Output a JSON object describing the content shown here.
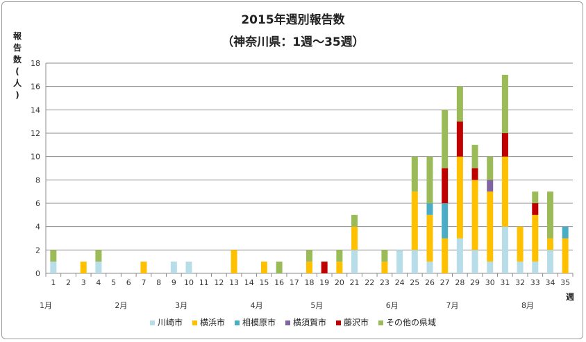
{
  "title_line1": "2015年週別報告数",
  "title_line2": "（神奈川県：1週〜35週）",
  "chart_data": {
    "type": "bar",
    "stacked": true,
    "ylabel": "報告数(人)",
    "xlabel": "週",
    "ylim": [
      0,
      18
    ],
    "yticks": [
      0,
      2,
      4,
      6,
      8,
      10,
      12,
      14,
      16,
      18
    ],
    "grid": true,
    "legend_position": "bottom",
    "categories": [
      "1",
      "2",
      "3",
      "4",
      "5",
      "6",
      "7",
      "8",
      "9",
      "10",
      "11",
      "12",
      "13",
      "14",
      "15",
      "16",
      "17",
      "18",
      "19",
      "20",
      "21",
      "22",
      "23",
      "24",
      "25",
      "26",
      "27",
      "28",
      "29",
      "30",
      "31",
      "32",
      "33",
      "34",
      "35"
    ],
    "months": [
      {
        "label": "1月",
        "start_week": 1
      },
      {
        "label": "2月",
        "start_week": 6
      },
      {
        "label": "3月",
        "start_week": 10
      },
      {
        "label": "4月",
        "start_week": 15
      },
      {
        "label": "5月",
        "start_week": 19
      },
      {
        "label": "6月",
        "start_week": 24
      },
      {
        "label": "7月",
        "start_week": 28
      },
      {
        "label": "8月",
        "start_week": 33
      }
    ],
    "series": [
      {
        "name": "川崎市",
        "color": "#b7dde8",
        "values": [
          1,
          0,
          0,
          1,
          0,
          0,
          0,
          0,
          1,
          1,
          0,
          0,
          0,
          0,
          0,
          0,
          0,
          0,
          0,
          0,
          2,
          0,
          0,
          2,
          2,
          1,
          0,
          3,
          2,
          1,
          4,
          1,
          1,
          2,
          0
        ]
      },
      {
        "name": "横浜市",
        "color": "#ffc000",
        "values": [
          0,
          0,
          1,
          0,
          0,
          0,
          1,
          0,
          0,
          0,
          0,
          0,
          2,
          0,
          1,
          0,
          0,
          1,
          0,
          1,
          2,
          0,
          1,
          0,
          5,
          4,
          3,
          7,
          6,
          6,
          6,
          3,
          4,
          1,
          3
        ]
      },
      {
        "name": "相模原市",
        "color": "#4bacc6",
        "values": [
          0,
          0,
          0,
          0,
          0,
          0,
          0,
          0,
          0,
          0,
          0,
          0,
          0,
          0,
          0,
          0,
          0,
          0,
          0,
          0,
          0,
          0,
          0,
          0,
          0,
          1,
          3,
          0,
          0,
          0,
          0,
          0,
          0,
          0,
          1
        ]
      },
      {
        "name": "横須賀市",
        "color": "#8064a2",
        "values": [
          0,
          0,
          0,
          0,
          0,
          0,
          0,
          0,
          0,
          0,
          0,
          0,
          0,
          0,
          0,
          0,
          0,
          0,
          0,
          0,
          0,
          0,
          0,
          0,
          0,
          0,
          0,
          0,
          0,
          1,
          0,
          0,
          0,
          0,
          0
        ]
      },
      {
        "name": "藤沢市",
        "color": "#c00000",
        "values": [
          0,
          0,
          0,
          0,
          0,
          0,
          0,
          0,
          0,
          0,
          0,
          0,
          0,
          0,
          0,
          0,
          0,
          0,
          1,
          0,
          0,
          0,
          0,
          0,
          0,
          0,
          3,
          3,
          1,
          0,
          2,
          0,
          1,
          0,
          0
        ]
      },
      {
        "name": "その他の県域",
        "color": "#9bbb59",
        "values": [
          1,
          0,
          0,
          1,
          0,
          0,
          0,
          0,
          0,
          0,
          0,
          0,
          0,
          0,
          0,
          1,
          0,
          1,
          0,
          1,
          1,
          0,
          1,
          0,
          3,
          4,
          5,
          3,
          2,
          2,
          5,
          0,
          1,
          4,
          0
        ]
      }
    ]
  }
}
